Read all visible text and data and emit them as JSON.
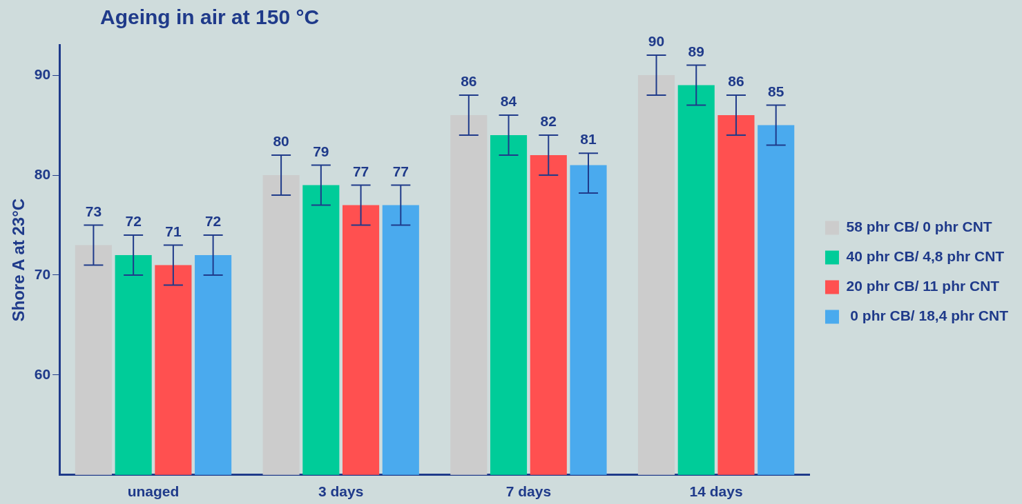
{
  "chart_data": {
    "type": "bar",
    "title": "Ageing in air at 150 °C",
    "ylabel": "Shore A at 23°C",
    "categories": [
      "unaged",
      "3 days",
      "7 days",
      "14 days"
    ],
    "series": [
      {
        "name": "58 phr CB/ 0 phr CNT",
        "color": "#cccccc",
        "values": [
          73,
          80,
          86,
          90
        ],
        "errors": [
          2,
          2,
          2,
          2
        ]
      },
      {
        "name": "40 phr CB/ 4,8 phr CNT",
        "color": "#00cc99",
        "values": [
          72,
          79,
          84,
          89
        ],
        "errors": [
          2,
          2,
          2,
          2
        ]
      },
      {
        "name": "20 phr CB/ 11 phr CNT",
        "color": "#ff5050",
        "values": [
          71,
          77,
          82,
          86
        ],
        "errors": [
          2,
          2,
          2,
          2
        ]
      },
      {
        "name": " 0 phr CB/ 18,4 phr CNT",
        "color": "#4aaaee",
        "values": [
          72,
          77,
          81,
          85
        ],
        "errors": [
          2,
          2,
          [
            78.2,
            82.2
          ],
          2
        ]
      }
    ],
    "ylim": [
      50,
      93
    ],
    "yticks": [
      60,
      70,
      80,
      90
    ],
    "grid": false,
    "legend": "right",
    "data_labels": true
  }
}
